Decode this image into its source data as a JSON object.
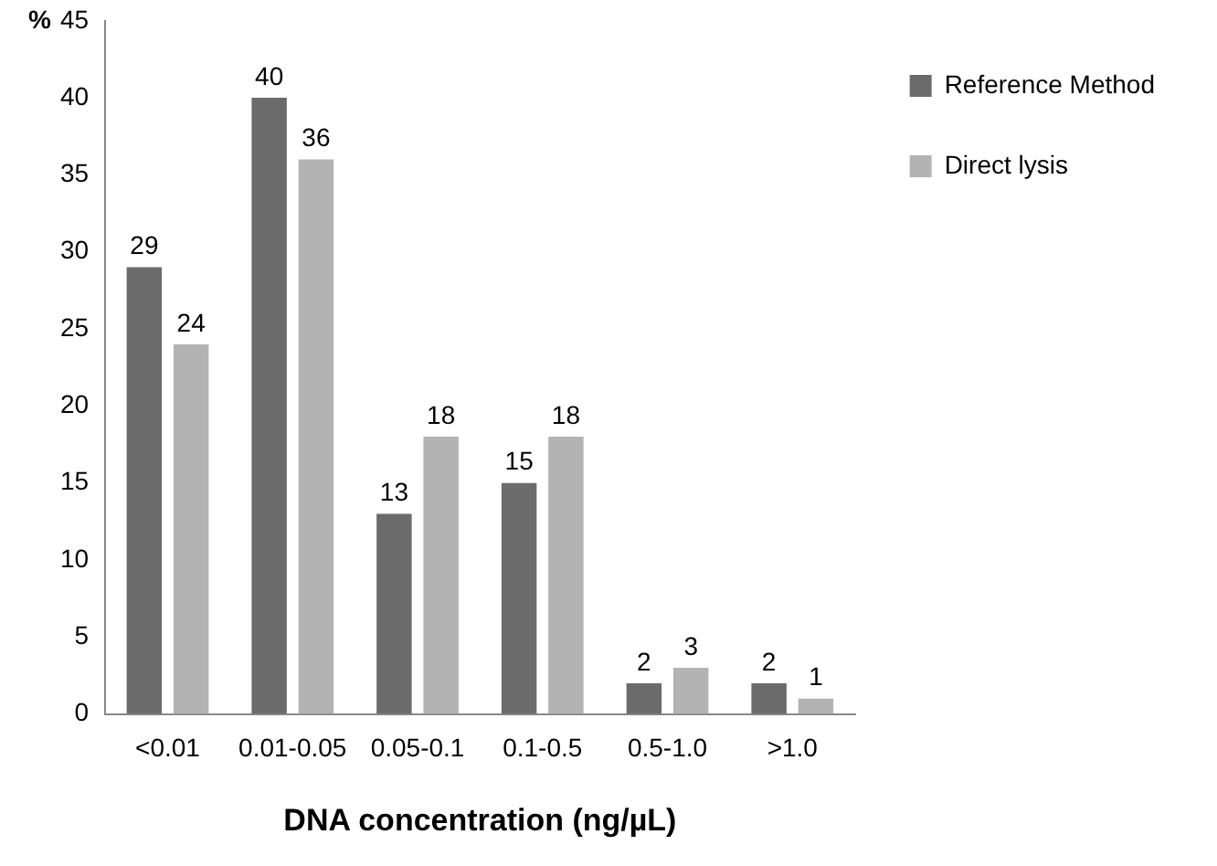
{
  "chart_data": {
    "type": "bar",
    "xlabel": "DNA concentration (ng/µL)",
    "ylabel": "%",
    "categories": [
      "<0.01",
      "0.01-0.05",
      "0.05-0.1",
      "0.1-0.5",
      "0.5-1.0",
      ">1.0"
    ],
    "series": [
      {
        "name": "Reference Method",
        "color": "#6b6b6b",
        "values": [
          29,
          40,
          13,
          15,
          2,
          2
        ]
      },
      {
        "name": "Direct lysis",
        "color": "#b3b3b3",
        "values": [
          24,
          36,
          18,
          18,
          3,
          1
        ]
      }
    ],
    "ylim": [
      0,
      45
    ],
    "yticks": [
      0,
      5,
      10,
      15,
      20,
      25,
      30,
      35,
      40,
      45
    ],
    "grid": false,
    "legend": "top right",
    "data_labels": true
  }
}
